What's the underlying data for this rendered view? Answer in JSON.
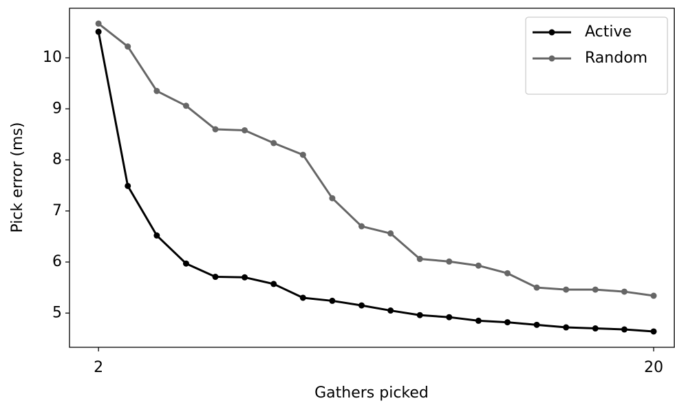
{
  "chart_data": {
    "type": "line",
    "x_label": "Gathers picked",
    "y_label": "Pick error (ms)",
    "x": [
      2,
      2.95,
      3.89,
      4.84,
      5.79,
      6.74,
      7.68,
      8.63,
      9.58,
      10.53,
      11.47,
      12.42,
      13.37,
      14.32,
      15.26,
      16.21,
      17.16,
      18.11,
      19.05,
      20
    ],
    "series": [
      {
        "name": "Active",
        "color": "#000000",
        "values": [
          10.51,
          7.49,
          6.52,
          5.97,
          5.71,
          5.7,
          5.57,
          5.3,
          5.24,
          5.15,
          5.05,
          4.96,
          4.92,
          4.85,
          4.82,
          4.77,
          4.72,
          4.7,
          4.68,
          4.64
        ]
      },
      {
        "name": "Random",
        "color": "#666666",
        "values": [
          10.67,
          10.22,
          9.35,
          9.06,
          8.6,
          8.58,
          8.33,
          8.1,
          7.25,
          6.7,
          6.56,
          6.06,
          6.01,
          5.93,
          5.78,
          5.5,
          5.46,
          5.46,
          5.42,
          5.34
        ]
      }
    ],
    "xlim": [
      1.06,
      20.67
    ],
    "xticks": [
      2,
      20
    ],
    "ylim": [
      4.33,
      10.97
    ],
    "yticks": [
      5,
      6,
      7,
      8,
      9,
      10
    ],
    "legend": "upper right",
    "grid": false
  }
}
